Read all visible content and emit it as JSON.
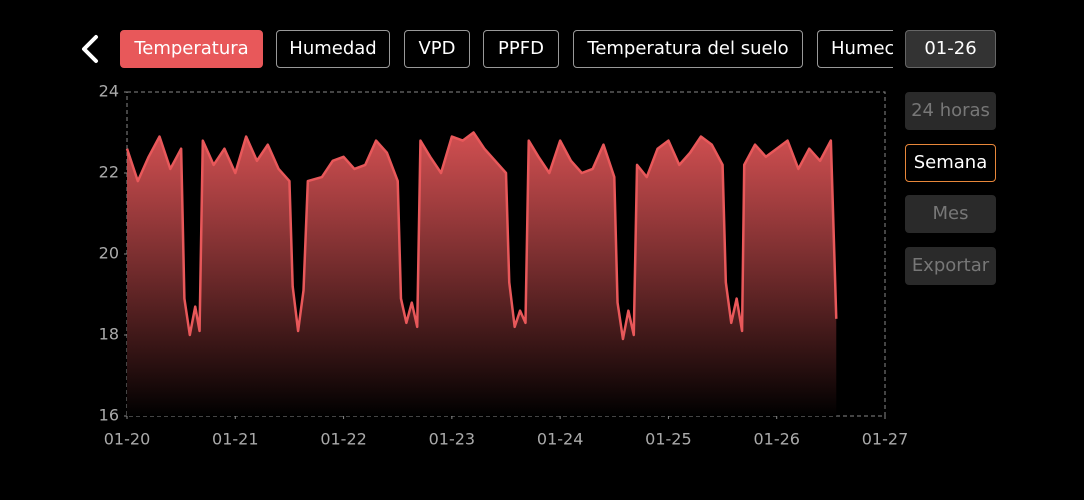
{
  "tabs": [
    "Temperatura",
    "Humedad",
    "VPD",
    "PPFD",
    "Temperatura del suelo",
    "Humec"
  ],
  "date_button": "01-26",
  "side_buttons": [
    "24 horas",
    "Semana",
    "Mes",
    "Exportar"
  ],
  "chart_data": {
    "type": "area",
    "xlim": [
      0,
      7
    ],
    "xticks": [
      {
        "value": 0,
        "label": "01-20"
      },
      {
        "value": 1,
        "label": "01-21"
      },
      {
        "value": 2,
        "label": "01-22"
      },
      {
        "value": 3,
        "label": "01-23"
      },
      {
        "value": 4,
        "label": "01-24"
      },
      {
        "value": 5,
        "label": "01-25"
      },
      {
        "value": 6,
        "label": "01-26"
      },
      {
        "value": 7,
        "label": "01-27"
      }
    ],
    "ylim": [
      16,
      24
    ],
    "yticks": [
      16,
      18,
      20,
      22,
      24
    ],
    "series": [
      {
        "color": "#e8585a",
        "x": [
          0,
          0.1,
          0.2,
          0.3,
          0.4,
          0.5,
          0.53,
          0.58,
          0.63,
          0.67,
          0.7,
          0.8,
          0.9,
          1.0,
          1.1,
          1.2,
          1.3,
          1.4,
          1.5,
          1.53,
          1.58,
          1.63,
          1.67,
          1.8,
          1.9,
          2.0,
          2.1,
          2.2,
          2.3,
          2.4,
          2.5,
          2.53,
          2.58,
          2.63,
          2.68,
          2.71,
          2.8,
          2.9,
          3.0,
          3.1,
          3.2,
          3.3,
          3.4,
          3.5,
          3.53,
          3.58,
          3.63,
          3.68,
          3.71,
          3.8,
          3.9,
          4.0,
          4.1,
          4.2,
          4.3,
          4.4,
          4.5,
          4.53,
          4.58,
          4.63,
          4.68,
          4.71,
          4.8,
          4.9,
          5.0,
          5.1,
          5.2,
          5.3,
          5.4,
          5.5,
          5.53,
          5.58,
          5.63,
          5.68,
          5.7,
          5.8,
          5.9,
          6.0,
          6.1,
          6.2,
          6.3,
          6.4,
          6.5,
          6.55
        ],
        "values": [
          22.6,
          21.8,
          22.4,
          22.9,
          22.1,
          22.6,
          18.9,
          18.0,
          18.7,
          18.1,
          22.8,
          22.2,
          22.6,
          22.0,
          22.9,
          22.3,
          22.7,
          22.1,
          21.8,
          19.2,
          18.1,
          19.1,
          21.8,
          21.9,
          22.3,
          22.4,
          22.1,
          22.2,
          22.8,
          22.5,
          21.8,
          18.9,
          18.3,
          18.8,
          18.2,
          22.8,
          22.4,
          22.0,
          22.9,
          22.8,
          23.0,
          22.6,
          22.3,
          22.0,
          19.3,
          18.2,
          18.6,
          18.3,
          22.8,
          22.4,
          22.0,
          22.8,
          22.3,
          22.0,
          22.1,
          22.7,
          21.9,
          18.8,
          17.9,
          18.6,
          18.0,
          22.2,
          21.9,
          22.6,
          22.8,
          22.2,
          22.5,
          22.9,
          22.7,
          22.2,
          19.3,
          18.3,
          18.9,
          18.1,
          22.2,
          22.7,
          22.4,
          22.6,
          22.8,
          22.1,
          22.6,
          22.3,
          22.8,
          18.4
        ]
      }
    ]
  }
}
